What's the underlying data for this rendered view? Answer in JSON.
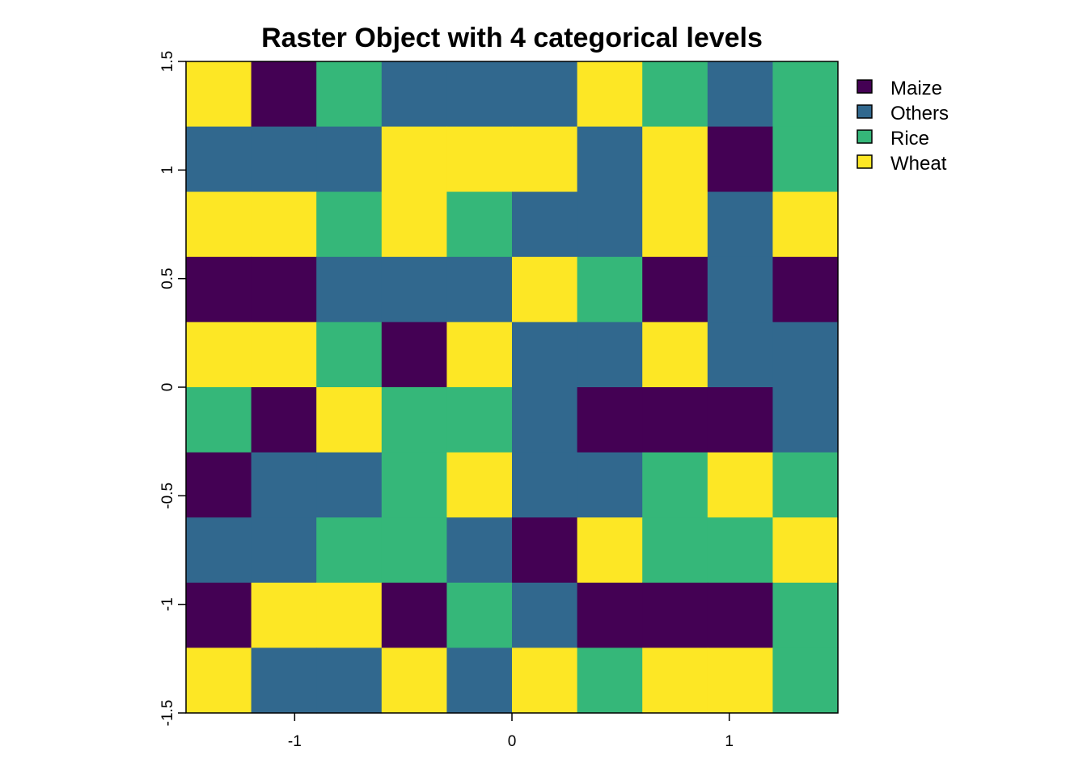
{
  "chart_data": {
    "type": "heatmap",
    "title": "Raster Object with 4 categorical levels",
    "xlim": [
      -1.5,
      1.5
    ],
    "ylim": [
      -1.5,
      1.5
    ],
    "x_ticks": [
      -1,
      0,
      1
    ],
    "x_tick_labels": [
      "-1",
      "0",
      "1"
    ],
    "y_ticks": [
      -1.5,
      -1,
      -0.5,
      0,
      0.5,
      1,
      1.5
    ],
    "y_tick_labels": [
      "-1.5",
      "-1",
      "-0.5",
      "0",
      "0.5",
      "1",
      "1.5"
    ],
    "legend_placement": "right-top",
    "categories": [
      "Maize",
      "Others",
      "Rice",
      "Wheat"
    ],
    "colors": {
      "Maize": "#440154",
      "Others": "#31688E",
      "Rice": "#35B779",
      "Wheat": "#FDE725"
    },
    "grid_rows_top_to_bottom": [
      [
        "Wheat",
        "Maize",
        "Rice",
        "Others",
        "Others",
        "Others",
        "Wheat",
        "Rice",
        "Others",
        "Rice"
      ],
      [
        "Others",
        "Others",
        "Others",
        "Wheat",
        "Wheat",
        "Wheat",
        "Others",
        "Wheat",
        "Maize",
        "Rice"
      ],
      [
        "Wheat",
        "Wheat",
        "Rice",
        "Wheat",
        "Rice",
        "Others",
        "Others",
        "Wheat",
        "Others",
        "Wheat"
      ],
      [
        "Maize",
        "Maize",
        "Others",
        "Others",
        "Others",
        "Wheat",
        "Rice",
        "Maize",
        "Others",
        "Maize"
      ],
      [
        "Wheat",
        "Wheat",
        "Rice",
        "Maize",
        "Wheat",
        "Others",
        "Others",
        "Wheat",
        "Others",
        "Others"
      ],
      [
        "Rice",
        "Maize",
        "Wheat",
        "Rice",
        "Rice",
        "Others",
        "Maize",
        "Maize",
        "Maize",
        "Others"
      ],
      [
        "Maize",
        "Others",
        "Others",
        "Rice",
        "Wheat",
        "Others",
        "Others",
        "Rice",
        "Wheat",
        "Rice"
      ],
      [
        "Others",
        "Others",
        "Rice",
        "Rice",
        "Others",
        "Maize",
        "Wheat",
        "Rice",
        "Rice",
        "Wheat"
      ],
      [
        "Maize",
        "Wheat",
        "Wheat",
        "Maize",
        "Rice",
        "Others",
        "Maize",
        "Maize",
        "Maize",
        "Rice"
      ],
      [
        "Wheat",
        "Others",
        "Others",
        "Wheat",
        "Others",
        "Wheat",
        "Rice",
        "Wheat",
        "Wheat",
        "Rice"
      ]
    ]
  }
}
